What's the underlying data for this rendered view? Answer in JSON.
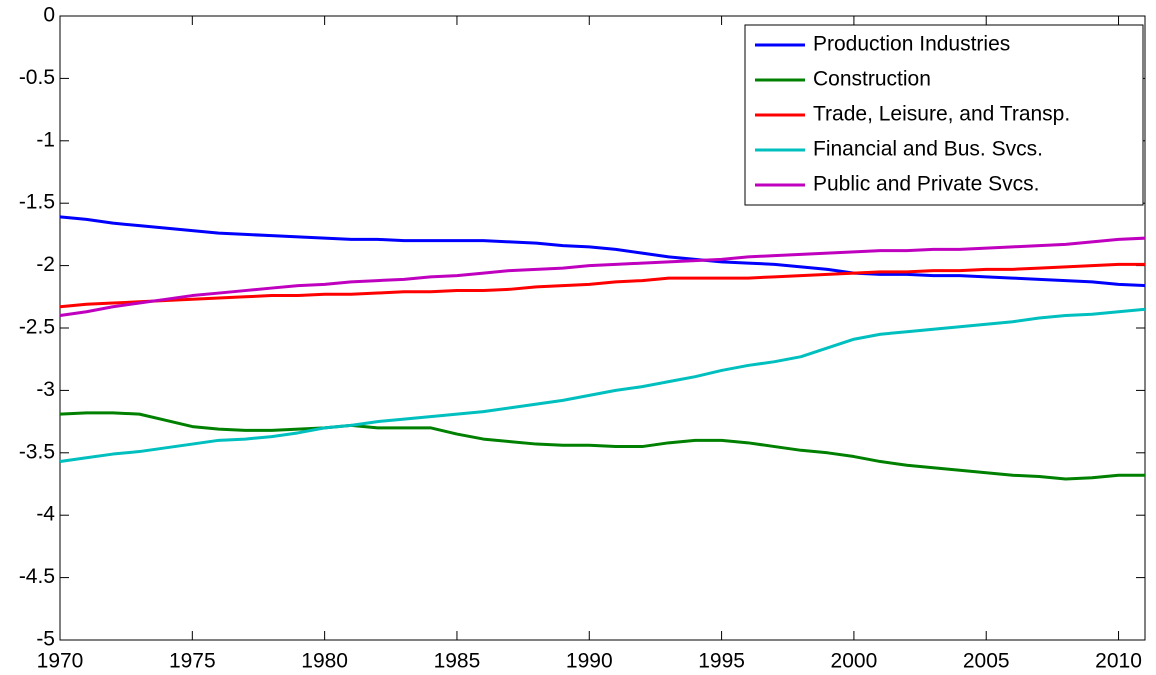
{
  "chart_data": {
    "type": "line",
    "x": [
      1970,
      1971,
      1972,
      1973,
      1974,
      1975,
      1976,
      1977,
      1978,
      1979,
      1980,
      1981,
      1982,
      1983,
      1984,
      1985,
      1986,
      1987,
      1988,
      1989,
      1990,
      1991,
      1992,
      1993,
      1994,
      1995,
      1996,
      1997,
      1998,
      1999,
      2000,
      2001,
      2002,
      2003,
      2004,
      2005,
      2006,
      2007,
      2008,
      2009,
      2010,
      2011
    ],
    "xlim": [
      1970,
      2011
    ],
    "xticks": [
      1970,
      1975,
      1980,
      1985,
      1990,
      1995,
      2000,
      2005,
      2010
    ],
    "ylim": [
      -5,
      0
    ],
    "yticks": [
      0,
      -0.5,
      -1,
      -1.5,
      -2,
      -2.5,
      -3,
      -3.5,
      -4,
      -4.5,
      -5
    ],
    "grid": false,
    "legend": "northeast",
    "series": [
      {
        "name": "Production Industries",
        "color": "#0000ff",
        "values": [
          -1.61,
          -1.63,
          -1.66,
          -1.68,
          -1.7,
          -1.72,
          -1.74,
          -1.75,
          -1.76,
          -1.77,
          -1.78,
          -1.79,
          -1.79,
          -1.8,
          -1.8,
          -1.8,
          -1.8,
          -1.81,
          -1.82,
          -1.84,
          -1.85,
          -1.87,
          -1.9,
          -1.93,
          -1.95,
          -1.97,
          -1.98,
          -1.99,
          -2.01,
          -2.03,
          -2.06,
          -2.07,
          -2.07,
          -2.08,
          -2.08,
          -2.09,
          -2.1,
          -2.11,
          -2.12,
          -2.13,
          -2.15,
          -2.16
        ]
      },
      {
        "name": "Construction",
        "color": "#008000",
        "values": [
          -3.19,
          -3.18,
          -3.18,
          -3.19,
          -3.24,
          -3.29,
          -3.31,
          -3.32,
          -3.32,
          -3.31,
          -3.3,
          -3.28,
          -3.3,
          -3.3,
          -3.3,
          -3.35,
          -3.39,
          -3.41,
          -3.43,
          -3.44,
          -3.44,
          -3.45,
          -3.45,
          -3.42,
          -3.4,
          -3.4,
          -3.42,
          -3.45,
          -3.48,
          -3.5,
          -3.53,
          -3.57,
          -3.6,
          -3.62,
          -3.64,
          -3.66,
          -3.68,
          -3.69,
          -3.71,
          -3.7,
          -3.68,
          -3.68
        ]
      },
      {
        "name": "Trade, Leisure, and Transp.",
        "color": "#ff0000",
        "values": [
          -2.33,
          -2.31,
          -2.3,
          -2.29,
          -2.28,
          -2.27,
          -2.26,
          -2.25,
          -2.24,
          -2.24,
          -2.23,
          -2.23,
          -2.22,
          -2.21,
          -2.21,
          -2.2,
          -2.2,
          -2.19,
          -2.17,
          -2.16,
          -2.15,
          -2.13,
          -2.12,
          -2.1,
          -2.1,
          -2.1,
          -2.1,
          -2.09,
          -2.08,
          -2.07,
          -2.06,
          -2.05,
          -2.05,
          -2.04,
          -2.04,
          -2.03,
          -2.03,
          -2.02,
          -2.01,
          -2.0,
          -1.99,
          -1.99
        ]
      },
      {
        "name": "Financial and Bus. Svcs.",
        "color": "#00bfbf",
        "values": [
          -3.57,
          -3.54,
          -3.51,
          -3.49,
          -3.46,
          -3.43,
          -3.4,
          -3.39,
          -3.37,
          -3.34,
          -3.3,
          -3.28,
          -3.25,
          -3.23,
          -3.21,
          -3.19,
          -3.17,
          -3.14,
          -3.11,
          -3.08,
          -3.04,
          -3.0,
          -2.97,
          -2.93,
          -2.89,
          -2.84,
          -2.8,
          -2.77,
          -2.73,
          -2.66,
          -2.59,
          -2.55,
          -2.53,
          -2.51,
          -2.49,
          -2.47,
          -2.45,
          -2.42,
          -2.4,
          -2.39,
          -2.37,
          -2.35
        ]
      },
      {
        "name": "Public and Private Svcs.",
        "color": "#bf00bf",
        "values": [
          -2.4,
          -2.37,
          -2.33,
          -2.3,
          -2.27,
          -2.24,
          -2.22,
          -2.2,
          -2.18,
          -2.16,
          -2.15,
          -2.13,
          -2.12,
          -2.11,
          -2.09,
          -2.08,
          -2.06,
          -2.04,
          -2.03,
          -2.02,
          -2.0,
          -1.99,
          -1.98,
          -1.97,
          -1.96,
          -1.95,
          -1.93,
          -1.92,
          -1.91,
          -1.9,
          -1.89,
          -1.88,
          -1.88,
          -1.87,
          -1.87,
          -1.86,
          -1.85,
          -1.84,
          -1.83,
          -1.81,
          -1.79,
          -1.78
        ]
      }
    ]
  }
}
